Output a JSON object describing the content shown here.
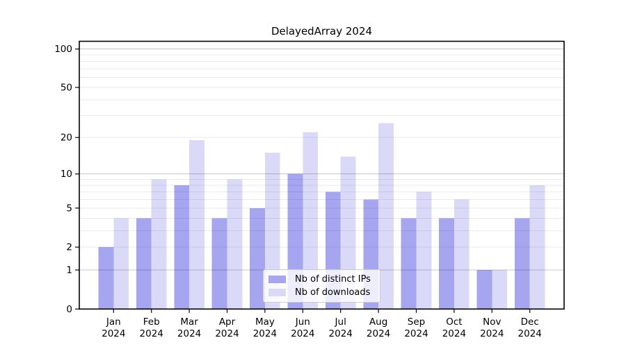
{
  "title": "DelayedArray 2024",
  "chart_data": {
    "type": "bar",
    "title": "DelayedArray 2024",
    "y_scale": "log1p",
    "categories": [
      "Jan 2024",
      "Feb 2024",
      "Mar 2024",
      "Apr 2024",
      "May 2024",
      "Jun 2024",
      "Jul 2024",
      "Aug 2024",
      "Sep 2024",
      "Oct 2024",
      "Nov 2024",
      "Dec 2024"
    ],
    "series": [
      {
        "name": "Nb of distinct IPs",
        "color": "#a5a5f0",
        "values": [
          2,
          4,
          8,
          4,
          5,
          10,
          7,
          6,
          4,
          4,
          1,
          4
        ]
      },
      {
        "name": "Nb of downloads",
        "color": "#dadaf8",
        "values": [
          4,
          9,
          19,
          9,
          15,
          22,
          14,
          26,
          7,
          6,
          1,
          8
        ]
      }
    ],
    "y_ticks": [
      0,
      1,
      2,
      5,
      10,
      20,
      50,
      100
    ],
    "y_major_gridlines": [
      1,
      10,
      100
    ],
    "y_minor_gridlines": [
      2,
      3,
      4,
      5,
      6,
      7,
      8,
      9,
      20,
      30,
      40,
      50,
      60,
      70,
      80,
      90
    ],
    "ylim": [
      0,
      115
    ],
    "xlabel": "",
    "ylabel": "",
    "grid": "on",
    "legend_position": "bottom-center"
  },
  "colors": {
    "background": "#ffffff",
    "axis": "#000000",
    "tick_label": "#000000",
    "grid_major": "#c7c7c7",
    "grid_minor": "#ebebeb",
    "bar_distinct_ips": "#a5a5f0",
    "bar_downloads": "#dadaf8",
    "legend_border": "#cccccc"
  }
}
